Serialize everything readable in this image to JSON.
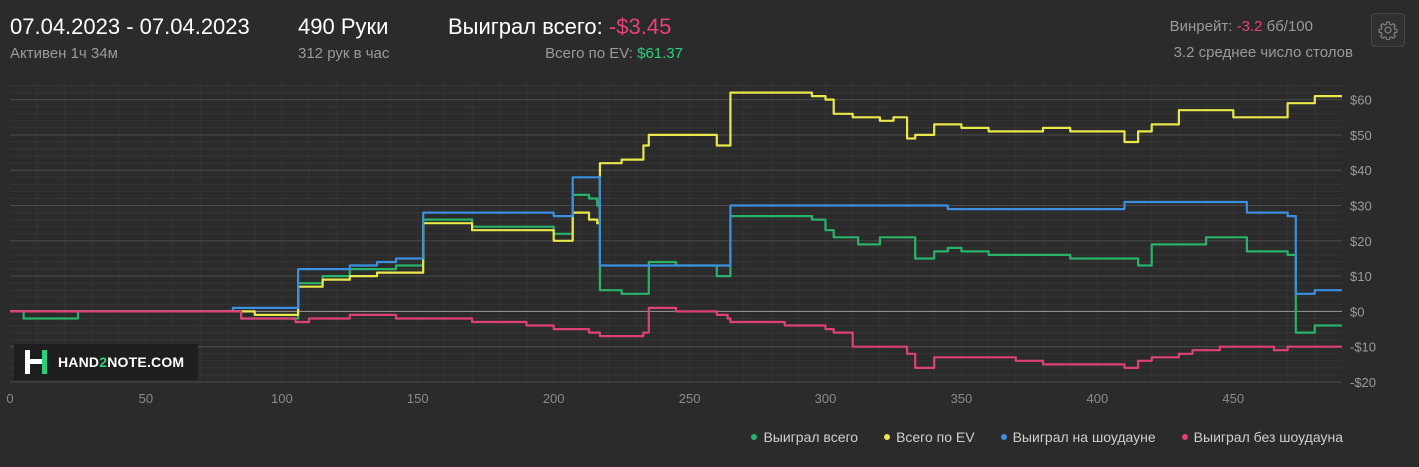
{
  "header": {
    "date_range": "07.04.2023 - 07.04.2023",
    "active_time": "Активен 1ч 34м",
    "hands": "490 Руки",
    "hands_per_hour": "312 рук в час",
    "won_total_label": "Выиграл всего:",
    "won_total_value": "-$3.45",
    "ev_label": "Всего по EV:",
    "ev_value": "$61.37",
    "winrate_label": "Винрейт:",
    "winrate_value": "-3.2",
    "winrate_unit": "бб/100",
    "avg_tables": "3.2 среднее число столов",
    "settings_icon": "gear-icon"
  },
  "logo": {
    "text_a": "HAND",
    "text_b": "2",
    "text_c": "NOTE.COM"
  },
  "colors": {
    "won": "#27b36a",
    "ev": "#e8e84a",
    "showdown": "#3b8fe0",
    "nonshowdown": "#e0407a",
    "negative": "#e8407c",
    "positive": "#2bd07a"
  },
  "chart_data": {
    "type": "line",
    "title": "",
    "xlabel": "",
    "ylabel": "",
    "xlim": [
      0,
      490
    ],
    "ylim": [
      -20,
      65
    ],
    "x_ticks": [
      0,
      50,
      100,
      150,
      200,
      250,
      300,
      350,
      400,
      450
    ],
    "y_ticks": [
      60,
      50,
      40,
      30,
      20,
      10,
      0,
      -10,
      -20
    ],
    "y_tick_labels": [
      "$60",
      "$50",
      "$40",
      "$30",
      "$20",
      "$10",
      "$0",
      "-$10",
      "-$20"
    ],
    "grid": true,
    "legend_position": "bottom-right",
    "series": [
      {
        "name": "Выиграл всего",
        "color": "#27b36a",
        "points": [
          [
            0,
            0
          ],
          [
            5,
            -2
          ],
          [
            15,
            -2
          ],
          [
            25,
            0
          ],
          [
            35,
            0
          ],
          [
            45,
            0
          ],
          [
            55,
            0
          ],
          [
            65,
            0
          ],
          [
            80,
            0
          ],
          [
            85,
            -2
          ],
          [
            105,
            -2
          ],
          [
            106,
            8
          ],
          [
            115,
            10
          ],
          [
            125,
            12
          ],
          [
            135,
            12
          ],
          [
            140,
            12
          ],
          [
            142,
            13
          ],
          [
            150,
            13
          ],
          [
            152,
            26
          ],
          [
            170,
            24
          ],
          [
            190,
            24
          ],
          [
            200,
            22
          ],
          [
            205,
            22
          ],
          [
            207,
            33
          ],
          [
            213,
            32
          ],
          [
            216,
            30
          ],
          [
            217,
            6
          ],
          [
            225,
            5
          ],
          [
            233,
            5
          ],
          [
            235,
            14
          ],
          [
            245,
            13
          ],
          [
            255,
            13
          ],
          [
            260,
            10
          ],
          [
            264,
            10
          ],
          [
            265,
            27
          ],
          [
            275,
            27
          ],
          [
            285,
            27
          ],
          [
            295,
            26
          ],
          [
            300,
            23
          ],
          [
            303,
            21
          ],
          [
            310,
            21
          ],
          [
            312,
            19
          ],
          [
            320,
            21
          ],
          [
            325,
            21
          ],
          [
            330,
            21
          ],
          [
            333,
            15
          ],
          [
            340,
            17
          ],
          [
            345,
            18
          ],
          [
            350,
            17
          ],
          [
            360,
            16
          ],
          [
            370,
            16
          ],
          [
            380,
            16
          ],
          [
            390,
            15
          ],
          [
            400,
            15
          ],
          [
            410,
            15
          ],
          [
            415,
            13
          ],
          [
            420,
            19
          ],
          [
            425,
            19
          ],
          [
            430,
            19
          ],
          [
            435,
            19
          ],
          [
            440,
            21
          ],
          [
            445,
            21
          ],
          [
            450,
            21
          ],
          [
            455,
            17
          ],
          [
            465,
            17
          ],
          [
            470,
            16
          ],
          [
            473,
            -6
          ],
          [
            480,
            -4
          ],
          [
            490,
            -4
          ]
        ]
      },
      {
        "name": "Всего по EV",
        "color": "#e8e84a",
        "points": [
          [
            0,
            0
          ],
          [
            25,
            0
          ],
          [
            55,
            0
          ],
          [
            80,
            0
          ],
          [
            90,
            -1
          ],
          [
            105,
            -1
          ],
          [
            106,
            7
          ],
          [
            115,
            9
          ],
          [
            125,
            10
          ],
          [
            135,
            11
          ],
          [
            140,
            11
          ],
          [
            142,
            11
          ],
          [
            150,
            11
          ],
          [
            152,
            25
          ],
          [
            170,
            23
          ],
          [
            190,
            23
          ],
          [
            200,
            20
          ],
          [
            205,
            20
          ],
          [
            207,
            28
          ],
          [
            213,
            26
          ],
          [
            216,
            25
          ],
          [
            217,
            42
          ],
          [
            225,
            43
          ],
          [
            233,
            47
          ],
          [
            235,
            50
          ],
          [
            245,
            50
          ],
          [
            255,
            50
          ],
          [
            260,
            47
          ],
          [
            264,
            47
          ],
          [
            265,
            62
          ],
          [
            275,
            62
          ],
          [
            285,
            62
          ],
          [
            295,
            61
          ],
          [
            300,
            60
          ],
          [
            303,
            56
          ],
          [
            310,
            55
          ],
          [
            312,
            55
          ],
          [
            320,
            54
          ],
          [
            325,
            55
          ],
          [
            330,
            49
          ],
          [
            333,
            50
          ],
          [
            340,
            53
          ],
          [
            345,
            53
          ],
          [
            350,
            52
          ],
          [
            360,
            51
          ],
          [
            370,
            51
          ],
          [
            380,
            52
          ],
          [
            390,
            51
          ],
          [
            400,
            51
          ],
          [
            410,
            48
          ],
          [
            415,
            51
          ],
          [
            420,
            53
          ],
          [
            425,
            53
          ],
          [
            430,
            57
          ],
          [
            435,
            57
          ],
          [
            440,
            57
          ],
          [
            445,
            57
          ],
          [
            450,
            55
          ],
          [
            455,
            55
          ],
          [
            465,
            55
          ],
          [
            470,
            59
          ],
          [
            473,
            59
          ],
          [
            480,
            61
          ],
          [
            490,
            61
          ]
        ]
      },
      {
        "name": "Выиграл на шоудауне",
        "color": "#3b8fe0",
        "points": [
          [
            0,
            0
          ],
          [
            25,
            0
          ],
          [
            55,
            0
          ],
          [
            80,
            0
          ],
          [
            82,
            1
          ],
          [
            105,
            1
          ],
          [
            106,
            12
          ],
          [
            115,
            12
          ],
          [
            125,
            13
          ],
          [
            135,
            14
          ],
          [
            140,
            14
          ],
          [
            142,
            15
          ],
          [
            150,
            15
          ],
          [
            152,
            28
          ],
          [
            170,
            28
          ],
          [
            190,
            28
          ],
          [
            200,
            27
          ],
          [
            205,
            27
          ],
          [
            207,
            38
          ],
          [
            213,
            38
          ],
          [
            216,
            38
          ],
          [
            217,
            13
          ],
          [
            225,
            13
          ],
          [
            233,
            13
          ],
          [
            235,
            13
          ],
          [
            245,
            13
          ],
          [
            255,
            13
          ],
          [
            260,
            13
          ],
          [
            264,
            13
          ],
          [
            265,
            30
          ],
          [
            275,
            30
          ],
          [
            285,
            30
          ],
          [
            295,
            30
          ],
          [
            300,
            30
          ],
          [
            303,
            30
          ],
          [
            310,
            30
          ],
          [
            312,
            30
          ],
          [
            320,
            30
          ],
          [
            325,
            30
          ],
          [
            330,
            30
          ],
          [
            333,
            30
          ],
          [
            340,
            30
          ],
          [
            345,
            29
          ],
          [
            350,
            29
          ],
          [
            360,
            29
          ],
          [
            370,
            29
          ],
          [
            380,
            29
          ],
          [
            390,
            29
          ],
          [
            400,
            29
          ],
          [
            410,
            31
          ],
          [
            415,
            31
          ],
          [
            420,
            31
          ],
          [
            425,
            31
          ],
          [
            430,
            31
          ],
          [
            435,
            31
          ],
          [
            440,
            31
          ],
          [
            445,
            31
          ],
          [
            450,
            31
          ],
          [
            455,
            28
          ],
          [
            465,
            28
          ],
          [
            470,
            27
          ],
          [
            473,
            5
          ],
          [
            480,
            6
          ],
          [
            490,
            6
          ]
        ]
      },
      {
        "name": "Выиграл без шоудауна",
        "color": "#e0407a",
        "points": [
          [
            0,
            0
          ],
          [
            25,
            0
          ],
          [
            55,
            0
          ],
          [
            80,
            0
          ],
          [
            85,
            -2
          ],
          [
            105,
            -3
          ],
          [
            110,
            -2
          ],
          [
            115,
            -2
          ],
          [
            125,
            -1
          ],
          [
            135,
            -1
          ],
          [
            140,
            -1
          ],
          [
            142,
            -2
          ],
          [
            150,
            -2
          ],
          [
            152,
            -2
          ],
          [
            170,
            -3
          ],
          [
            190,
            -4
          ],
          [
            200,
            -5
          ],
          [
            205,
            -5
          ],
          [
            207,
            -5
          ],
          [
            213,
            -6
          ],
          [
            216,
            -6
          ],
          [
            217,
            -7
          ],
          [
            225,
            -7
          ],
          [
            233,
            -6
          ],
          [
            235,
            1
          ],
          [
            245,
            0
          ],
          [
            255,
            0
          ],
          [
            260,
            -1
          ],
          [
            264,
            -2
          ],
          [
            265,
            -3
          ],
          [
            275,
            -3
          ],
          [
            285,
            -4
          ],
          [
            295,
            -4
          ],
          [
            300,
            -5
          ],
          [
            303,
            -6
          ],
          [
            310,
            -10
          ],
          [
            312,
            -10
          ],
          [
            320,
            -10
          ],
          [
            325,
            -10
          ],
          [
            330,
            -12
          ],
          [
            333,
            -16
          ],
          [
            340,
            -13
          ],
          [
            345,
            -13
          ],
          [
            350,
            -13
          ],
          [
            360,
            -13
          ],
          [
            370,
            -14
          ],
          [
            380,
            -15
          ],
          [
            390,
            -15
          ],
          [
            400,
            -15
          ],
          [
            410,
            -16
          ],
          [
            415,
            -14
          ],
          [
            420,
            -13
          ],
          [
            425,
            -13
          ],
          [
            430,
            -12
          ],
          [
            435,
            -11
          ],
          [
            440,
            -11
          ],
          [
            445,
            -10
          ],
          [
            450,
            -10
          ],
          [
            455,
            -10
          ],
          [
            465,
            -11
          ],
          [
            470,
            -10
          ],
          [
            473,
            -10
          ],
          [
            480,
            -10
          ],
          [
            490,
            -10
          ]
        ]
      }
    ]
  },
  "legend": [
    {
      "label": "Выиграл всего",
      "color": "#27b36a"
    },
    {
      "label": "Всего по EV",
      "color": "#e8e84a"
    },
    {
      "label": "Выиграл на шоудауне",
      "color": "#3b8fe0"
    },
    {
      "label": "Выиграл без шоудауна",
      "color": "#e0407a"
    }
  ]
}
